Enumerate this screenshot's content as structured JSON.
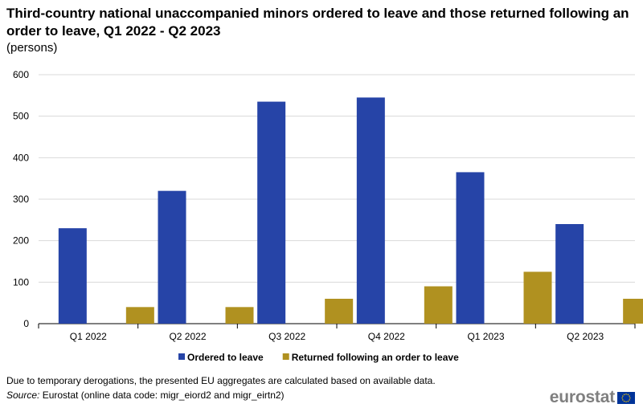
{
  "title": "Third-country national unaccompanied minors ordered to leave and those returned following an order to leave, Q1 2022 - Q2 2023",
  "subtitle": "(persons)",
  "chart_data": {
    "type": "bar",
    "categories": [
      "Q1 2022",
      "Q2 2022",
      "Q3 2022",
      "Q4 2022",
      "Q1 2023",
      "Q2 2023"
    ],
    "series": [
      {
        "name": "Ordered to leave",
        "values": [
          230,
          320,
          535,
          545,
          365,
          240
        ],
        "color": "#2644A7"
      },
      {
        "name": "Returned following an order to leave",
        "values": [
          40,
          40,
          60,
          90,
          125,
          60
        ],
        "color": "#B09120"
      }
    ],
    "ylim": [
      0,
      600
    ],
    "yticks": [
      0,
      100,
      200,
      300,
      400,
      500,
      600
    ],
    "grid": true,
    "legend_position": "bottom"
  },
  "note": "Due to temporary derogations, the presented EU aggregates are calculated based on available data.",
  "source": {
    "label": "Source:",
    "text": "Eurostat (online data code: migr_eiord2 and migr_eirtn2)"
  },
  "logo": {
    "text": "eurostat",
    "flag_color": "#003399",
    "star_color": "#FFCC00"
  }
}
